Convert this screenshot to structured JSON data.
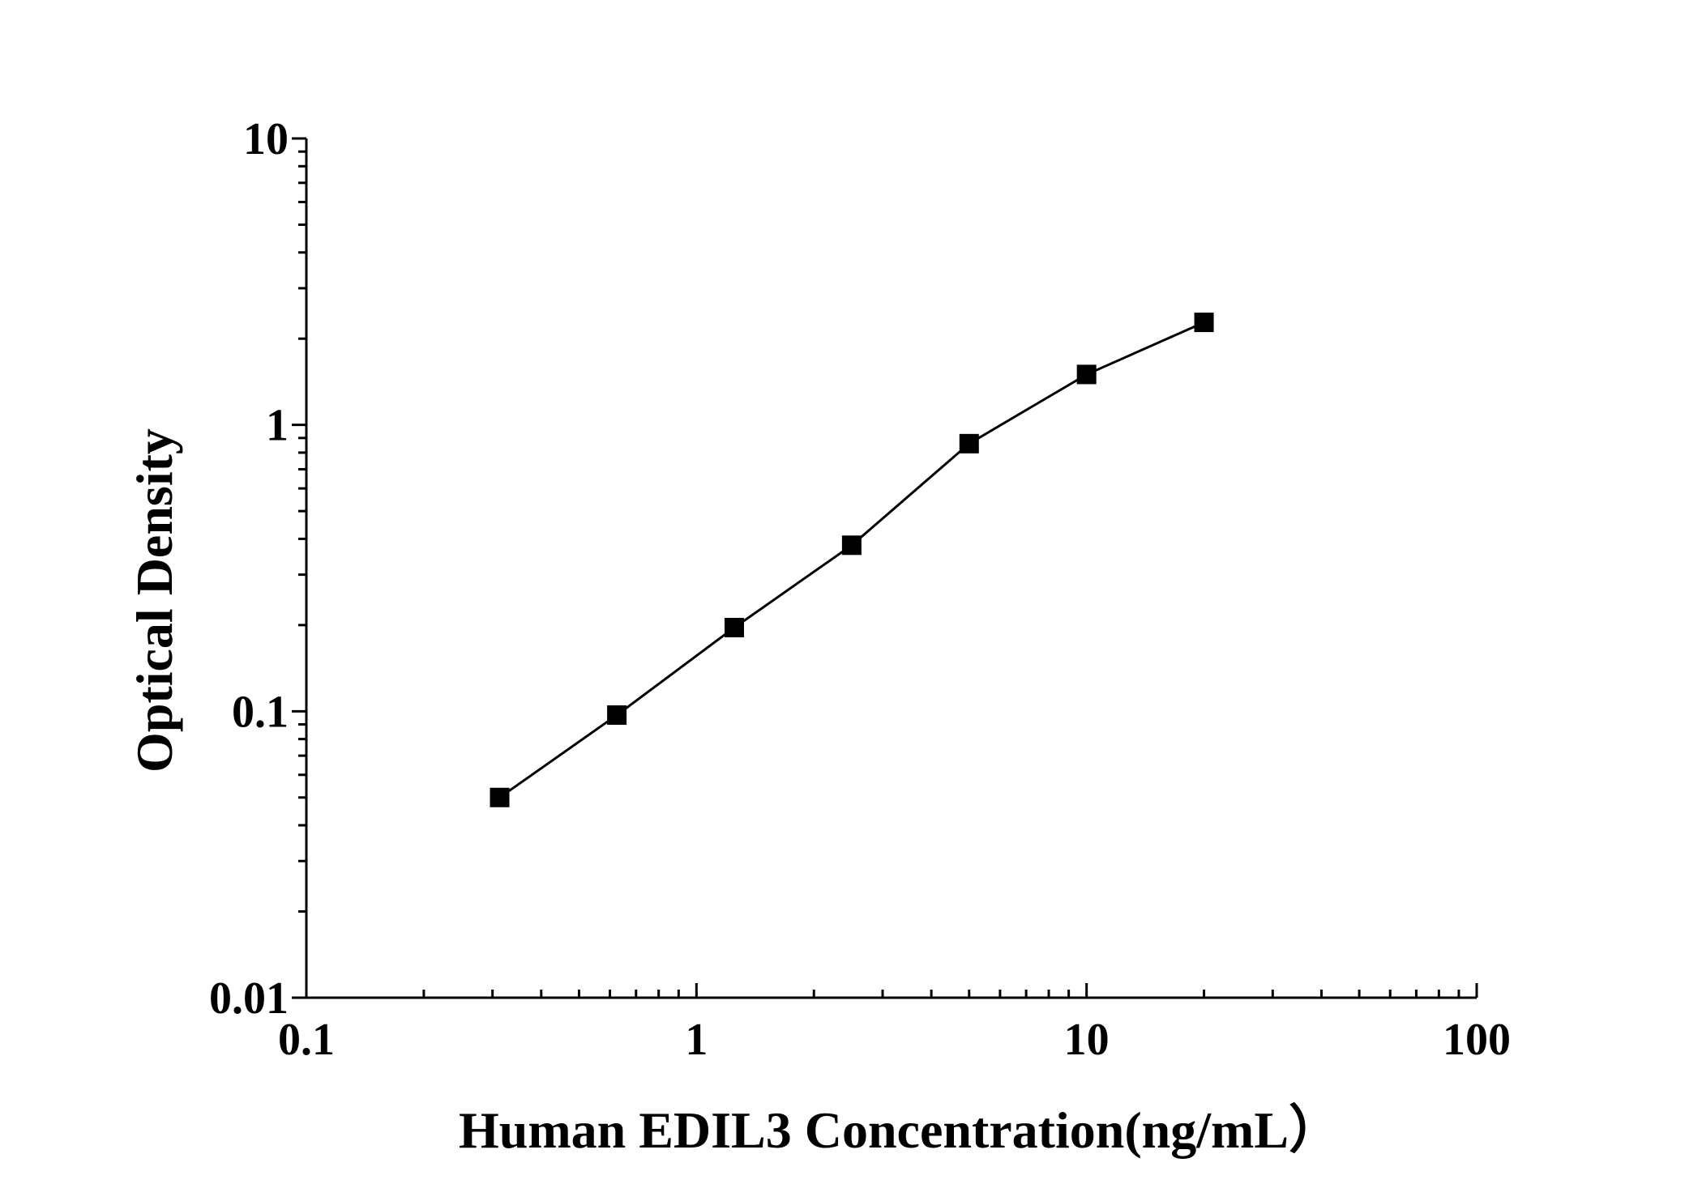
{
  "chart_data": {
    "type": "line",
    "xlabel": "Human EDIL3  Concentration(ng/mL）",
    "ylabel": "Optical Density",
    "x_scale": "log",
    "y_scale": "log",
    "xlim": [
      0.1,
      100
    ],
    "ylim": [
      0.01,
      10
    ],
    "x_ticks": [
      {
        "value": 0.1,
        "label": "0.1"
      },
      {
        "value": 1,
        "label": "1"
      },
      {
        "value": 10,
        "label": "10"
      },
      {
        "value": 100,
        "label": "100"
      }
    ],
    "y_ticks": [
      {
        "value": 0.01,
        "label": "0.01"
      },
      {
        "value": 0.1,
        "label": "0.1"
      },
      {
        "value": 1,
        "label": "1"
      },
      {
        "value": 10,
        "label": "10"
      }
    ],
    "grid": false,
    "legend": "none",
    "marker": "square",
    "series": [
      {
        "x": [
          0.313,
          0.625,
          1.25,
          2.5,
          5,
          10,
          20
        ],
        "y": [
          0.05,
          0.097,
          0.196,
          0.38,
          0.86,
          1.5,
          2.28
        ]
      }
    ],
    "colors": {
      "line": "#000000",
      "marker": "#000000",
      "axis": "#000000"
    }
  }
}
